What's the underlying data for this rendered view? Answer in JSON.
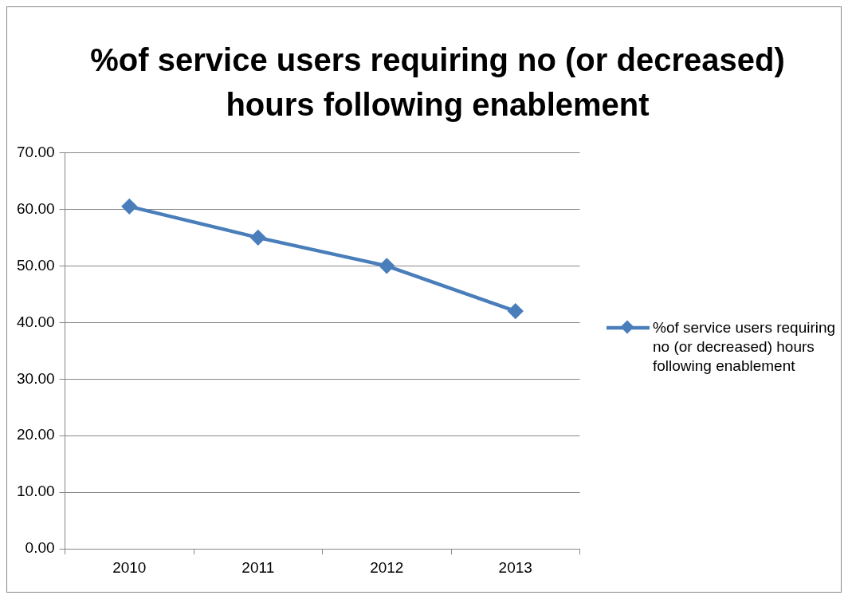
{
  "chart_data": {
    "type": "line",
    "title": "%of service users requiring no (or decreased) hours following enablement",
    "categories": [
      "2010",
      "2011",
      "2012",
      "2013"
    ],
    "series": [
      {
        "name": "%of service users requiring no (or decreased) hours following enablement",
        "color": "#4a7ebb",
        "values": [
          60.5,
          55,
          50,
          42
        ]
      }
    ],
    "ylim": [
      0,
      70
    ],
    "yticks": [
      {
        "value": 0,
        "label": "0.00"
      },
      {
        "value": 10,
        "label": "10.00"
      },
      {
        "value": 20,
        "label": "20.00"
      },
      {
        "value": 30,
        "label": "30.00"
      },
      {
        "value": 40,
        "label": "40.00"
      },
      {
        "value": 50,
        "label": "50.00"
      },
      {
        "value": 60,
        "label": "60.00"
      },
      {
        "value": 70,
        "label": "70.00"
      }
    ],
    "grid": "y",
    "legend": "right",
    "marker": "diamond",
    "line_style": "solid"
  }
}
